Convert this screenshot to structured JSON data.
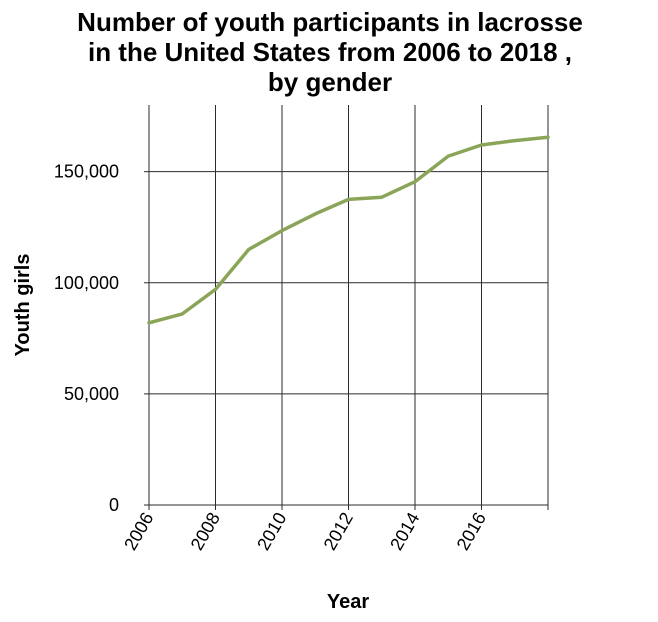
{
  "chart_data": {
    "type": "line",
    "title": "Number of youth participants in lacrosse in the United States from 2006 to 2018 , by gender",
    "title_lines": [
      "Number of youth participants in lacrosse",
      "in the United States from 2006 to 2018 ,",
      "by gender"
    ],
    "xlabel": "Year",
    "ylabel": "Youth girls",
    "xlim": [
      2006,
      2018
    ],
    "ylim": [
      0,
      180000
    ],
    "x_ticks": [
      2006,
      2008,
      2010,
      2012,
      2014,
      2016
    ],
    "x_tick_labels": [
      "2006",
      "2008",
      "2010",
      "2012",
      "2014",
      "2016"
    ],
    "y_ticks": [
      0,
      50000,
      100000,
      150000
    ],
    "y_tick_labels": [
      "0",
      "50,000",
      "100,000",
      "150,000"
    ],
    "grid": true,
    "line_color": "#8aa557",
    "series": [
      {
        "x": [
          2006,
          2007,
          2008,
          2009,
          2010,
          2011,
          2012,
          2013,
          2014,
          2015,
          2016,
          2017,
          2018
        ],
        "values": [
          82000,
          86000,
          97000,
          115000,
          123500,
          131000,
          137500,
          138500,
          145500,
          157000,
          162000,
          164000,
          165500
        ]
      }
    ]
  }
}
